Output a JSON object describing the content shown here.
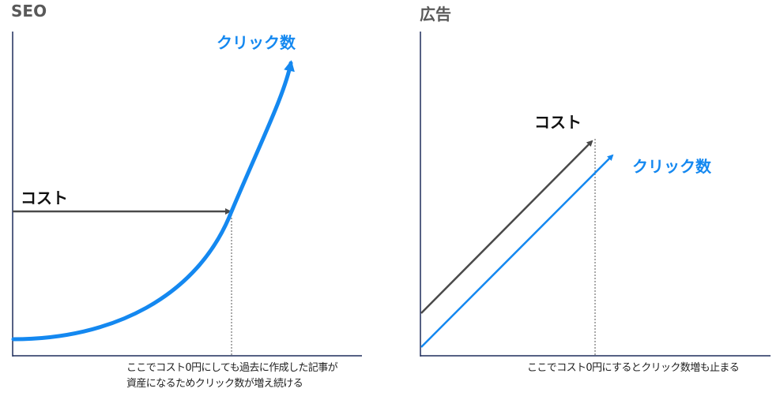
{
  "panels": {
    "seo": {
      "title": "SEO",
      "cost_label": "コスト",
      "clicks_label": "クリック数",
      "note_lines": [
        "ここでコスト0円にしても過去に作成した記事が",
        "資産になるためクリック数が増え続ける"
      ]
    },
    "ads": {
      "title": "広告",
      "cost_label": "コスト",
      "clicks_label": "クリック数",
      "note_lines": [
        "ここでコスト0円にするとクリック数増も止まる"
      ]
    }
  },
  "colors": {
    "axis": "#1f2d5c",
    "cost_line": "#4a4a4a",
    "clicks_line": "#1488f0",
    "title": "#595959",
    "guide": "#555555"
  }
}
